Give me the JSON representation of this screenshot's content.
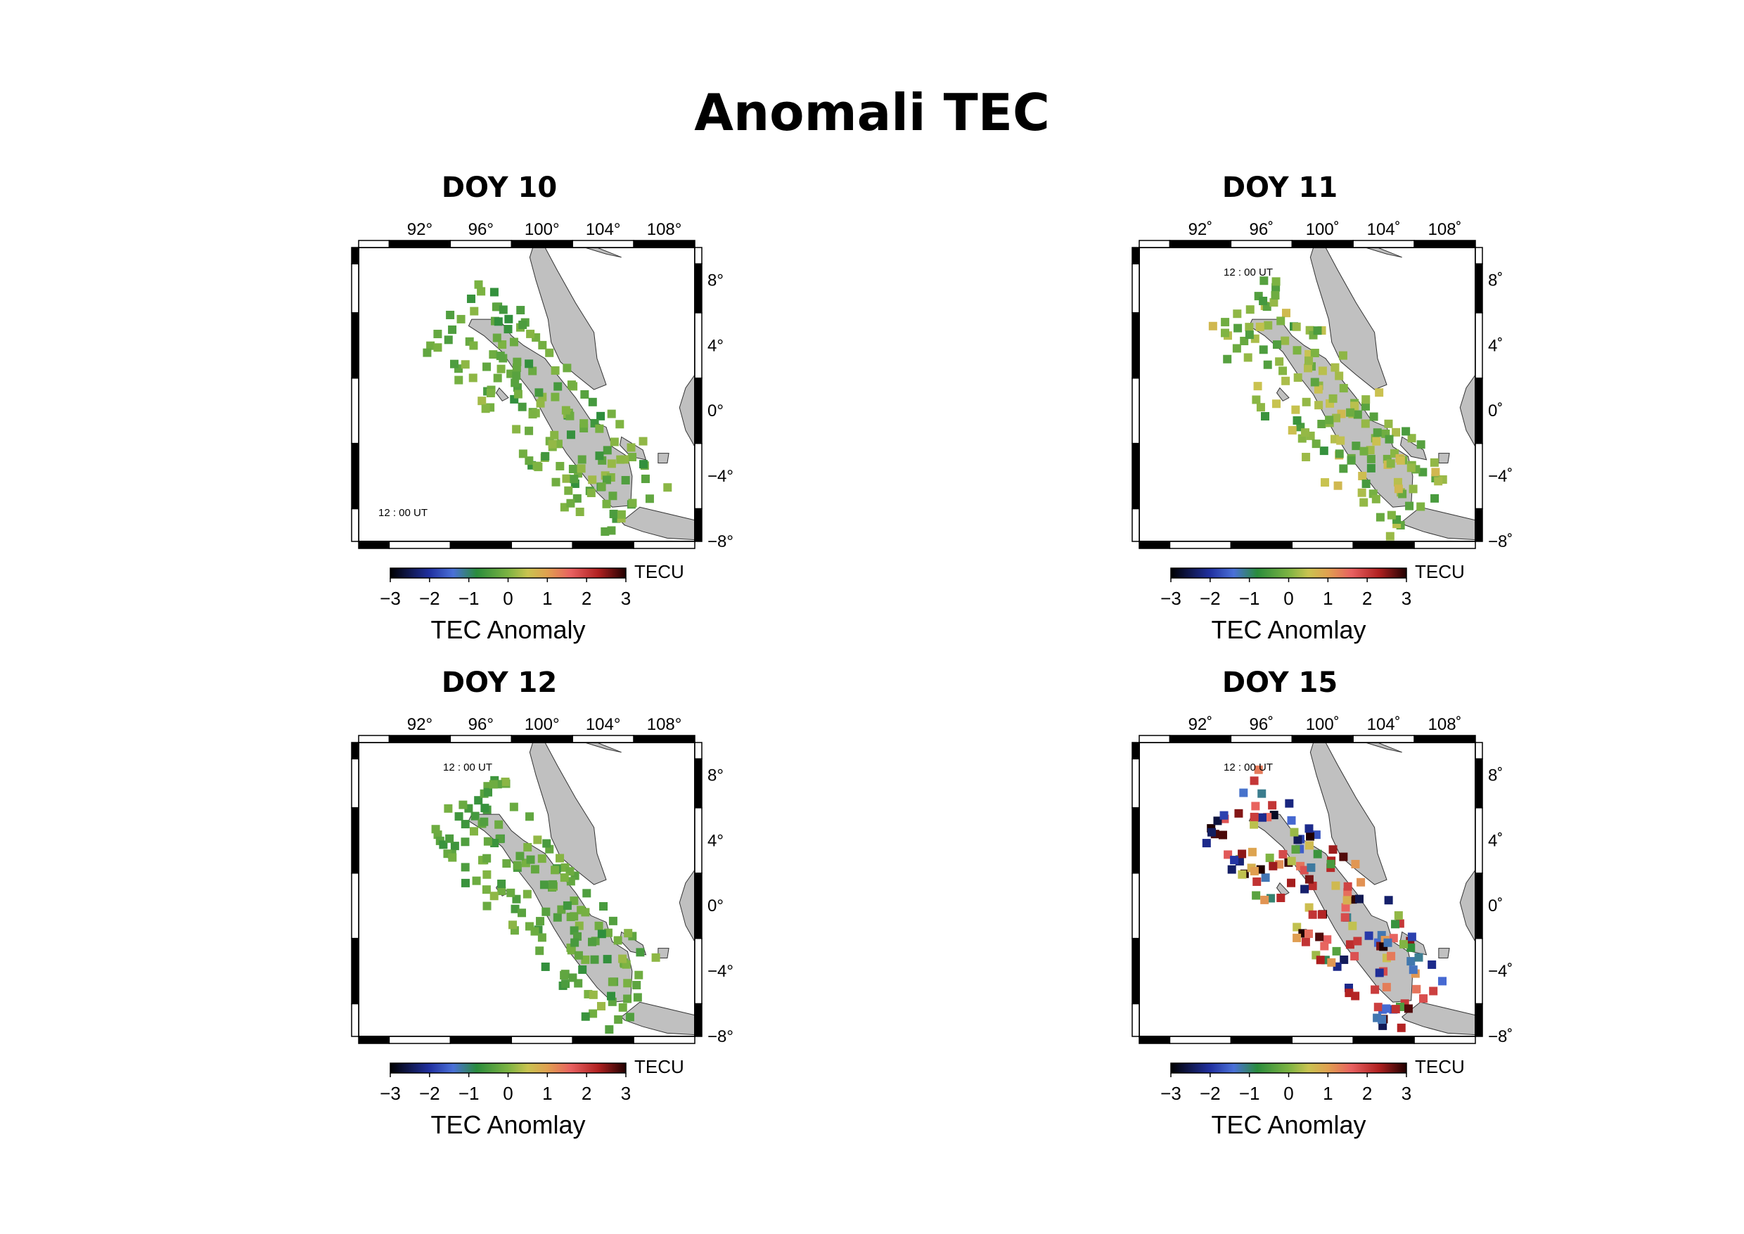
{
  "title": "Anomali TEC",
  "colorbar": {
    "unit": "TECU",
    "label": "TEC Anomaly",
    "labels_alt": "TEC Anomlay",
    "ticks": [
      "−3",
      "−2",
      "−1",
      "0",
      "1",
      "2",
      "3"
    ],
    "range": [
      -3,
      3
    ]
  },
  "map_extent": {
    "lon": [
      88,
      110
    ],
    "lat": [
      -8,
      10
    ]
  },
  "time_label": "12 : 00 UT",
  "panels": [
    {
      "title": "DOY 10",
      "lon_ticks": [
        "92°",
        "96°",
        "100°",
        "104°",
        "108°"
      ],
      "lat_ticks": [
        "8°",
        "4°",
        "0°",
        "−4°",
        "−8°"
      ],
      "cb_label": "TEC Anomaly",
      "station_anomaly_tecu": [
        -0.6,
        -0.1,
        0.1,
        -0.4,
        0.0,
        -0.2
      ]
    },
    {
      "title": "DOY 11",
      "lon_ticks": [
        "92˚",
        "96˚",
        "100˚",
        "104˚",
        "108˚"
      ],
      "lat_ticks": [
        "8˚",
        "4˚",
        "0˚",
        "−4˚",
        "−8˚"
      ],
      "cb_label": "TEC Anomlay",
      "station_anomaly_tecu": [
        -0.5,
        0.0,
        0.3,
        -0.3,
        0.5,
        0.1
      ]
    },
    {
      "title": "DOY 12",
      "lon_ticks": [
        "92°",
        "96°",
        "100°",
        "104°",
        "108°"
      ],
      "lat_ticks": [
        "8°",
        "4°",
        "0°",
        "−4°",
        "−8°"
      ],
      "cb_label": "TEC Anomlay",
      "station_anomaly_tecu": [
        -0.5,
        -0.2,
        0.0,
        -0.6,
        -0.1,
        -0.3
      ]
    },
    {
      "title": "DOY 15",
      "lon_ticks": [
        "92˚",
        "96˚",
        "100˚",
        "104˚",
        "108˚"
      ],
      "lat_ticks": [
        "8˚",
        "4˚",
        "0˚",
        "−4˚",
        "−8˚"
      ],
      "cb_label": "TEC Anomlay",
      "station_anomaly_tecu": [
        2.8,
        1.8,
        -1.8,
        0.8,
        -0.7,
        1.2,
        2.2,
        -2.0
      ]
    }
  ],
  "colors": {
    "land": "#c0c0c0",
    "coast": "#333333",
    "frame": "#000000"
  }
}
